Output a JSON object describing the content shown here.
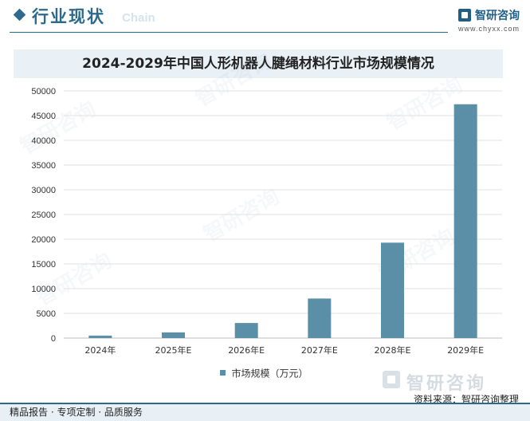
{
  "header": {
    "title": "行业现状",
    "ghost_text": "Chain"
  },
  "logo": {
    "name": "智研咨询",
    "url": "www.chyxx.com"
  },
  "watermark": "智研咨询",
  "chart_data": {
    "type": "bar",
    "title": "2024-2029年中国人形机器人腱绳材料行业市场规模情况",
    "categories": [
      "2024年",
      "2025年E",
      "2026年E",
      "2027年E",
      "2028年E",
      "2029年E"
    ],
    "series": [
      {
        "name": "市场规模（万元）",
        "values": [
          500,
          1150,
          3050,
          8000,
          19300,
          47300
        ],
        "color": "#5b8fa8"
      }
    ],
    "xlabel": "",
    "ylabel": "",
    "ylim": [
      0,
      50000
    ],
    "yticks": [
      0,
      5000,
      10000,
      15000,
      20000,
      25000,
      30000,
      35000,
      40000,
      45000,
      50000
    ],
    "grid": true,
    "legend": "bottom"
  },
  "footer": {
    "brand": "智研咨询",
    "source": "资料来源：智研咨询整理",
    "left_text": "精品报告 · 专项定制 · 品质服务"
  },
  "colors": {
    "brand": "#2c6a8d",
    "bar": "#5b8fa8",
    "band": "#e9f1f6"
  }
}
